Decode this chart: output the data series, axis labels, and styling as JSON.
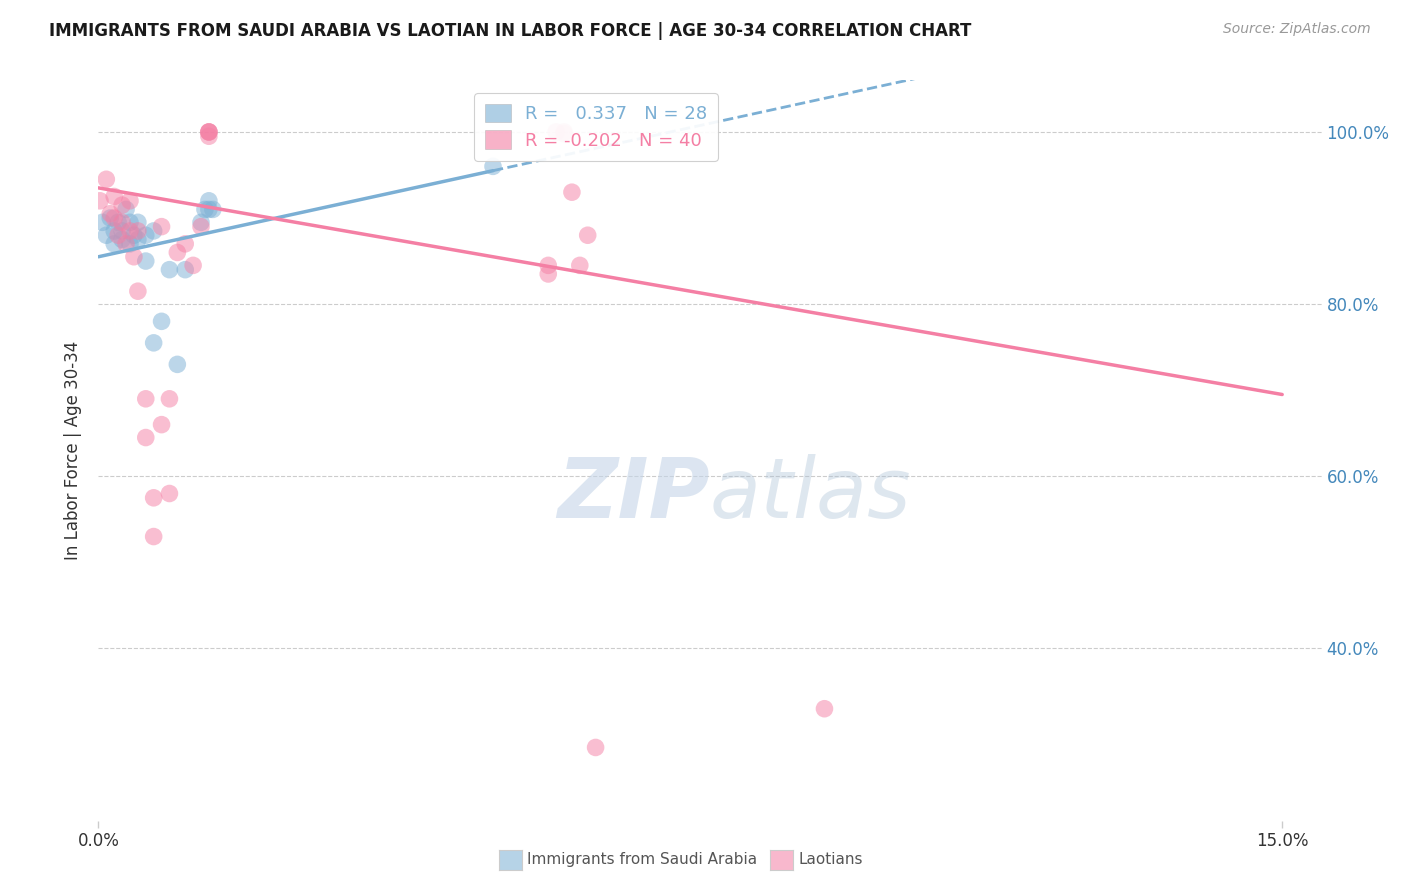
{
  "title": "IMMIGRANTS FROM SAUDI ARABIA VS LAOTIAN IN LABOR FORCE | AGE 30-34 CORRELATION CHART",
  "source": "Source: ZipAtlas.com",
  "ylabel": "In Labor Force | Age 30-34",
  "xlim": [
    0.0,
    0.155
  ],
  "ylim": [
    0.2,
    1.06
  ],
  "saudi_color": "#7BAFD4",
  "laotian_color": "#F47FA4",
  "saudi_R": 0.337,
  "saudi_N": 28,
  "laotian_R": -0.202,
  "laotian_N": 40,
  "saudi_x": [
    0.0005,
    0.001,
    0.0015,
    0.002,
    0.002,
    0.0025,
    0.003,
    0.003,
    0.0035,
    0.004,
    0.004,
    0.0045,
    0.005,
    0.005,
    0.006,
    0.006,
    0.007,
    0.007,
    0.008,
    0.009,
    0.01,
    0.011,
    0.013,
    0.0135,
    0.014,
    0.014,
    0.0145,
    0.05
  ],
  "saudi_y": [
    0.895,
    0.88,
    0.9,
    0.885,
    0.87,
    0.895,
    0.885,
    0.875,
    0.91,
    0.87,
    0.895,
    0.88,
    0.875,
    0.895,
    0.85,
    0.88,
    0.755,
    0.885,
    0.78,
    0.84,
    0.73,
    0.84,
    0.895,
    0.91,
    0.91,
    0.92,
    0.91,
    0.96
  ],
  "laotian_x": [
    0.0002,
    0.001,
    0.0015,
    0.002,
    0.002,
    0.0025,
    0.003,
    0.003,
    0.0035,
    0.004,
    0.004,
    0.0045,
    0.005,
    0.005,
    0.006,
    0.006,
    0.007,
    0.007,
    0.008,
    0.008,
    0.009,
    0.009,
    0.01,
    0.011,
    0.012,
    0.013,
    0.014,
    0.014,
    0.014,
    0.014,
    0.057,
    0.057,
    0.058,
    0.059,
    0.059,
    0.06,
    0.061,
    0.062,
    0.063,
    0.092
  ],
  "laotian_y": [
    0.92,
    0.945,
    0.905,
    0.925,
    0.9,
    0.88,
    0.915,
    0.895,
    0.87,
    0.885,
    0.92,
    0.855,
    0.885,
    0.815,
    0.69,
    0.645,
    0.575,
    0.53,
    0.89,
    0.66,
    0.69,
    0.58,
    0.86,
    0.87,
    0.845,
    0.89,
    1.0,
    1.0,
    0.995,
    1.0,
    0.845,
    0.835,
    1.0,
    1.0,
    0.998,
    0.93,
    0.845,
    0.88,
    0.285,
    0.33
  ],
  "ytick_vals": [
    1.0,
    0.8,
    0.6,
    0.4
  ],
  "ytick_labels": [
    "100.0%",
    "80.0%",
    "60.0%",
    "40.0%"
  ],
  "xtick_vals": [
    0.0,
    0.15
  ],
  "xtick_labels": [
    "0.0%",
    "15.0%"
  ],
  "background_color": "#ffffff",
  "grid_color": "#cccccc"
}
